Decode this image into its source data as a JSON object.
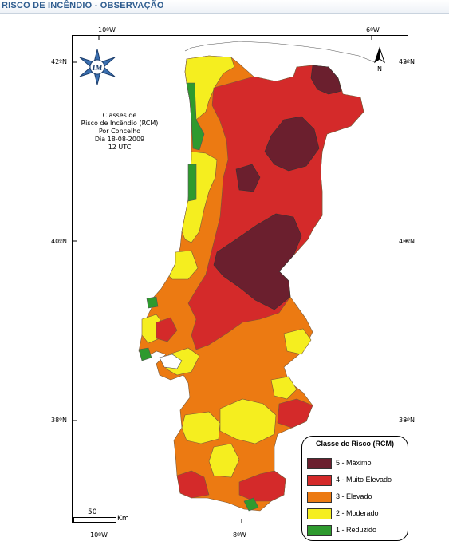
{
  "header": {
    "title": "RISCO DE INCÊNDIO - OBSERVAÇÃO"
  },
  "map": {
    "caption_lines": [
      "Classes de",
      "Risco de Incêndio (RCM)",
      "Por Concelho",
      "Dia 18-08-2009",
      "12 UTC"
    ],
    "coords": {
      "top_left": "10ºW",
      "top_right": "6ºW",
      "bottom_left": "10ºW",
      "bottom_mid": "8ºW",
      "lat_42_left": "42ºN",
      "lat_42_right": "42ºN",
      "lat_40_left": "40ºN",
      "lat_40_right": "40ºN",
      "lat_38_left": "38ºN",
      "lat_38_right": "38ºN"
    },
    "north_label": "N",
    "logo_text": "IM",
    "scale": {
      "value": "50",
      "unit": "Km"
    }
  },
  "legend": {
    "title": "Classe de Risco (RCM)",
    "items": [
      {
        "label": "5 - Máximo",
        "color": "#6b1f2e"
      },
      {
        "label": "4 - Muito Elevado",
        "color": "#d42a2a"
      },
      {
        "label": "3 - Elevado",
        "color": "#ec7a12"
      },
      {
        "label": "2 - Moderado",
        "color": "#f5ee1f"
      },
      {
        "label": "1 - Reduzido",
        "color": "#2e9a2e"
      }
    ]
  }
}
